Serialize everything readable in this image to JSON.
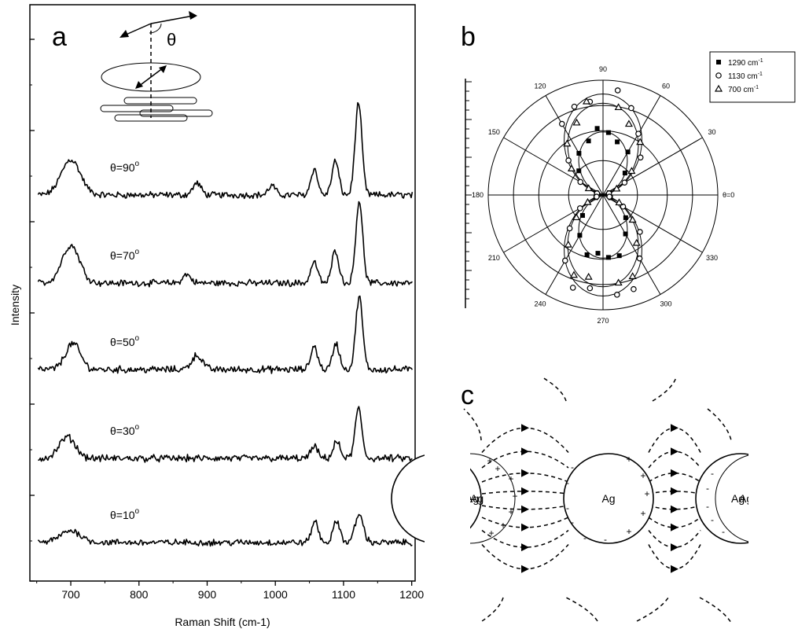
{
  "chart_data": [
    {
      "type": "line",
      "panel": "a",
      "xlabel": "Raman Shift (cm-1)",
      "ylabel": "Intensity",
      "xlim": [
        640,
        1205
      ],
      "xticks": [
        700,
        800,
        900,
        1000,
        1100,
        1200
      ],
      "inset_label": "θ",
      "series": [
        {
          "name": "θ=90°",
          "label_main": "θ=90",
          "label_sup": "o",
          "baseline": 0.4,
          "noise": 0.055,
          "peaks": [
            [
              700,
              0.75,
              14
            ],
            [
              885,
              0.25,
              6
            ],
            [
              995,
              0.2,
              5
            ],
            [
              1057,
              0.55,
              5
            ],
            [
              1088,
              0.72,
              5
            ],
            [
              1122,
              1.95,
              5
            ]
          ]
        },
        {
          "name": "θ=70°",
          "label_main": "θ=70",
          "label_sup": "o",
          "baseline": 0.55,
          "noise": 0.055,
          "peaks": [
            [
              700,
              0.8,
              13
            ],
            [
              870,
              0.18,
              6
            ],
            [
              1057,
              0.45,
              5
            ],
            [
              1088,
              0.7,
              5
            ],
            [
              1123,
              1.75,
              5
            ]
          ]
        },
        {
          "name": "θ=50°",
          "label_main": "θ=50",
          "label_sup": "o",
          "baseline": 0.6,
          "noise": 0.06,
          "peaks": [
            [
              703,
              0.55,
              11
            ],
            [
              885,
              0.3,
              8
            ],
            [
              1057,
              0.5,
              5
            ],
            [
              1089,
              0.55,
              5
            ],
            [
              1123,
              1.55,
              5
            ]
          ]
        },
        {
          "name": "θ=30°",
          "label_main": "θ=30",
          "label_sup": "o",
          "baseline": 0.58,
          "noise": 0.06,
          "peaks": [
            [
              695,
              0.45,
              12
            ],
            [
              1057,
              0.25,
              5
            ],
            [
              1090,
              0.35,
              5
            ],
            [
              1122,
              1.05,
              5
            ]
          ]
        },
        {
          "name": "θ=10°",
          "label_main": "θ=10",
          "label_sup": "o",
          "baseline": 0.62,
          "noise": 0.055,
          "peaks": [
            [
              700,
              0.25,
              15
            ],
            [
              1058,
              0.45,
              5
            ],
            [
              1090,
              0.45,
              5
            ],
            [
              1123,
              0.6,
              6
            ]
          ]
        }
      ]
    },
    {
      "type": "polar-scatter",
      "panel": "b",
      "angle_labels": [
        "θ=0",
        "30",
        "60",
        "90",
        "120",
        "150",
        "180",
        "210",
        "240",
        "270",
        "300",
        "330"
      ],
      "legend": [
        {
          "marker": "filled-square",
          "label": "1290 cm",
          "sup": "-1"
        },
        {
          "marker": "open-circle",
          "label": "1130 cm",
          "sup": "-1"
        },
        {
          "marker": "open-triangle",
          "label": "700 cm",
          "sup": "-1"
        }
      ],
      "series": [
        {
          "name": "1290 cm-1",
          "marker": "filled-square",
          "amplitude": 0.55,
          "points_deg": [
            20,
            45,
            60,
            75,
            85,
            95,
            105,
            120,
            135,
            160,
            200,
            225,
            240,
            255,
            265,
            275,
            285,
            300,
            315,
            340
          ]
        },
        {
          "name": "1130 cm-1",
          "marker": "open-circle",
          "amplitude": 0.88,
          "points_deg": [
            15,
            30,
            45,
            60,
            72,
            82,
            98,
            108,
            120,
            135,
            150,
            165,
            195,
            210,
            225,
            240,
            252,
            262,
            278,
            288,
            300,
            315,
            330,
            345
          ]
        },
        {
          "name": "700 cm-1",
          "marker": "open-triangle",
          "amplitude": 0.8,
          "points_deg": [
            25,
            40,
            55,
            70,
            80,
            100,
            110,
            125,
            140,
            155,
            205,
            220,
            235,
            250,
            260,
            280,
            290,
            305,
            320,
            335
          ]
        }
      ]
    },
    {
      "type": "diagram",
      "panel": "c",
      "particle_labels": [
        "Ag",
        "Ag",
        "Ag"
      ]
    }
  ],
  "panels": {
    "a": "a",
    "b": "b",
    "c": "c"
  }
}
